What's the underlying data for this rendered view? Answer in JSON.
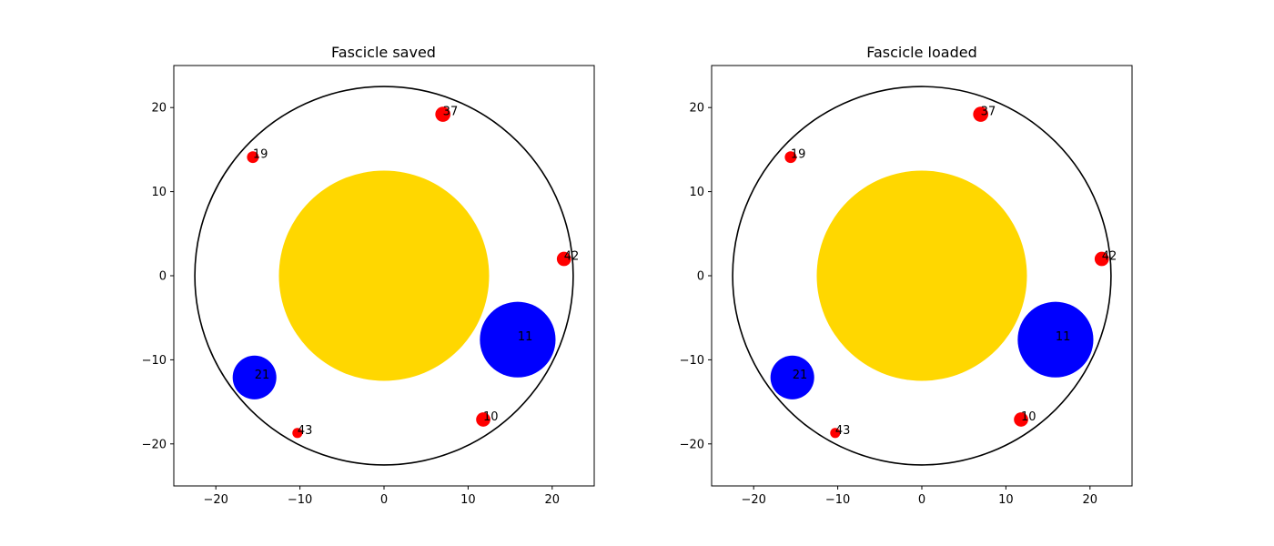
{
  "chart_data": [
    {
      "type": "scatter",
      "title": "Fascicle saved",
      "xlim": [
        -25,
        25
      ],
      "ylim": [
        -25,
        25
      ],
      "xticks": [
        -20,
        -10,
        0,
        10,
        20
      ],
      "yticks": [
        -20,
        -10,
        0,
        10,
        20
      ],
      "xtick_labels": [
        "−20",
        "−10",
        "0",
        "10",
        "20"
      ],
      "ytick_labels": [
        "−20",
        "−10",
        "0",
        "10",
        "20"
      ],
      "grid": false,
      "outer_circle": {
        "x": 0,
        "y": 0,
        "r": 22.5,
        "color": "#000000"
      },
      "core_circle": {
        "x": 0,
        "y": 0,
        "r": 12.5,
        "color": "#ffd700"
      },
      "axons": [
        {
          "label": "37",
          "x": 7.0,
          "y": 19.2,
          "r": 0.9,
          "color": "#ff0000"
        },
        {
          "label": "19",
          "x": -15.6,
          "y": 14.1,
          "r": 0.7,
          "color": "#ff0000"
        },
        {
          "label": "42",
          "x": 21.4,
          "y": 2.0,
          "r": 0.85,
          "color": "#ff0000"
        },
        {
          "label": "11",
          "x": 15.9,
          "y": -7.6,
          "r": 4.5,
          "color": "#0000ff"
        },
        {
          "label": "21",
          "x": -15.4,
          "y": -12.1,
          "r": 2.6,
          "color": "#0000ff"
        },
        {
          "label": "10",
          "x": 11.8,
          "y": -17.1,
          "r": 0.85,
          "color": "#ff0000"
        },
        {
          "label": "43",
          "x": -10.3,
          "y": -18.7,
          "r": 0.6,
          "color": "#ff0000"
        }
      ]
    },
    {
      "type": "scatter",
      "title": "Fascicle loaded",
      "xlim": [
        -25,
        25
      ],
      "ylim": [
        -25,
        25
      ],
      "xticks": [
        -20,
        -10,
        0,
        10,
        20
      ],
      "yticks": [
        -20,
        -10,
        0,
        10,
        20
      ],
      "xtick_labels": [
        "−20",
        "−10",
        "0",
        "10",
        "20"
      ],
      "ytick_labels": [
        "−20",
        "−10",
        "0",
        "10",
        "20"
      ],
      "grid": false,
      "outer_circle": {
        "x": 0,
        "y": 0,
        "r": 22.5,
        "color": "#000000"
      },
      "core_circle": {
        "x": 0,
        "y": 0,
        "r": 12.5,
        "color": "#ffd700"
      },
      "axons": [
        {
          "label": "37",
          "x": 7.0,
          "y": 19.2,
          "r": 0.9,
          "color": "#ff0000"
        },
        {
          "label": "19",
          "x": -15.6,
          "y": 14.1,
          "r": 0.7,
          "color": "#ff0000"
        },
        {
          "label": "42",
          "x": 21.4,
          "y": 2.0,
          "r": 0.85,
          "color": "#ff0000"
        },
        {
          "label": "11",
          "x": 15.9,
          "y": -7.6,
          "r": 4.5,
          "color": "#0000ff"
        },
        {
          "label": "21",
          "x": -15.4,
          "y": -12.1,
          "r": 2.6,
          "color": "#0000ff"
        },
        {
          "label": "10",
          "x": 11.8,
          "y": -17.1,
          "r": 0.85,
          "color": "#ff0000"
        },
        {
          "label": "43",
          "x": -10.3,
          "y": -18.7,
          "r": 0.6,
          "color": "#ff0000"
        }
      ]
    }
  ]
}
